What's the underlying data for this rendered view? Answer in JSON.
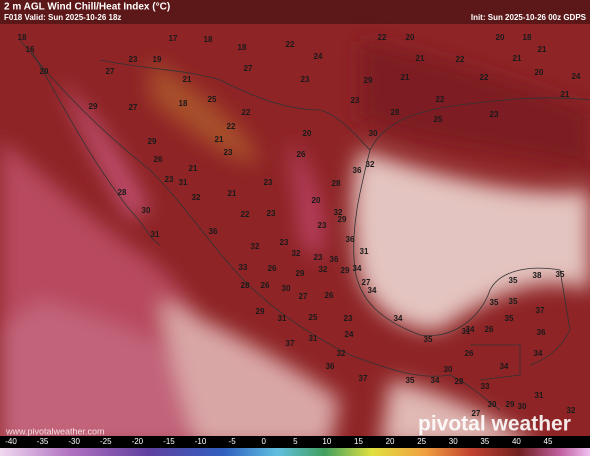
{
  "header": {
    "title": "2 m AGL Wind Chill/Heat Index (°C)",
    "valid": "F018 Valid: Sun 2025-10-26 18z",
    "init": "Init: Sun 2025-10-26 00z GDPS"
  },
  "map": {
    "labels": [
      18,
      16,
      17,
      18,
      18,
      22,
      22,
      20,
      20,
      18,
      21,
      23,
      19,
      27,
      24,
      21,
      22,
      21,
      20,
      27,
      21,
      23,
      29,
      21,
      22,
      20,
      24,
      18,
      27,
      25,
      23,
      22,
      21,
      29,
      22,
      22,
      21,
      20,
      28,
      25,
      23,
      29,
      26,
      23,
      26,
      30,
      32,
      36,
      21,
      23,
      31,
      32,
      21,
      23,
      28,
      32,
      20,
      28,
      30,
      22,
      23,
      23,
      29,
      31,
      36,
      23,
      36,
      31,
      32,
      23,
      36,
      32,
      33,
      26,
      29,
      32,
      29,
      27,
      34,
      38,
      35,
      35,
      28,
      26,
      30,
      26,
      27,
      34,
      35,
      37,
      35,
      31,
      29,
      23,
      25,
      34,
      34,
      26,
      35,
      36,
      37,
      24,
      31,
      35,
      31,
      34,
      26,
      36,
      32,
      34,
      30,
      33,
      37,
      35,
      34,
      28,
      30,
      31,
      32,
      27,
      29,
      30
    ]
  },
  "colorbar": {
    "ticks": [
      -40,
      -35,
      -30,
      -25,
      -20,
      -15,
      -10,
      -5,
      0,
      5,
      10,
      15,
      20,
      25,
      30,
      35,
      40,
      45
    ]
  },
  "watermark": {
    "logo": "pivotal weather",
    "url": "www.pivotalweather.com"
  }
}
